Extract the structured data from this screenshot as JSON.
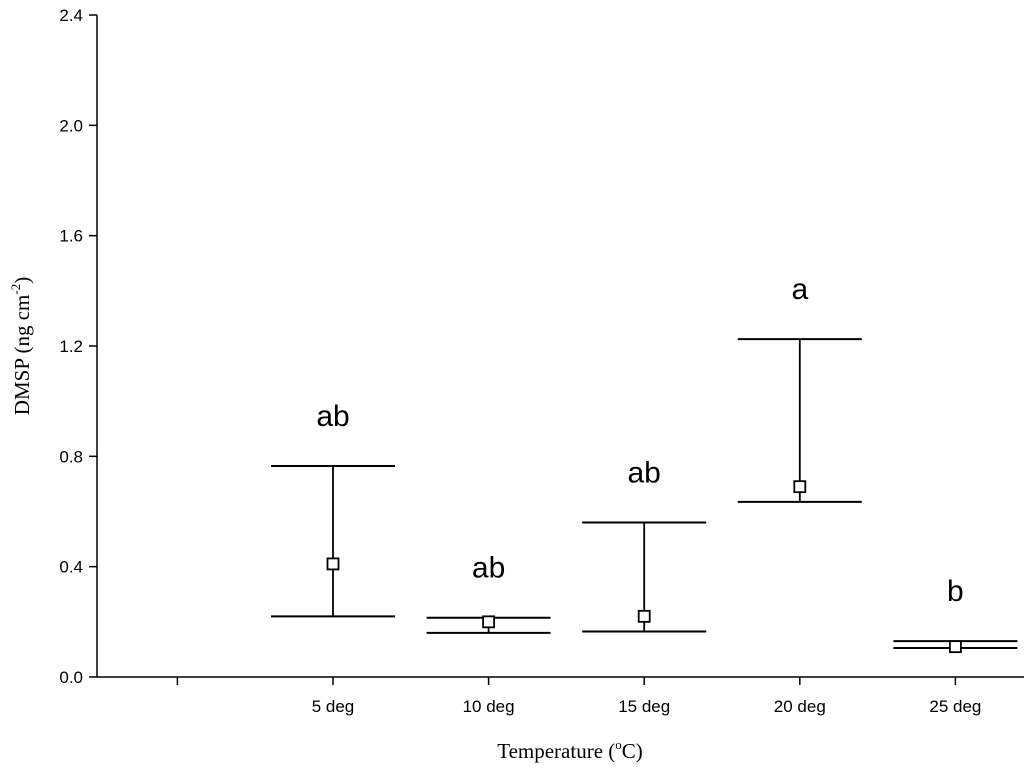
{
  "chart_data": {
    "type": "scatter",
    "title": "",
    "xlabel": {
      "main": "Temperature (",
      "sup": "o",
      "tail": "C)"
    },
    "ylabel": {
      "main": "DMSP (ng cm",
      "sup": "-2",
      "tail": ")"
    },
    "ylim": [
      0.0,
      2.4
    ],
    "yticks": [
      "0.0",
      "0.4",
      "0.8",
      "1.2",
      "1.6",
      "2.0",
      "2.4"
    ],
    "categories": [
      "5 deg",
      "10 deg",
      "15 deg",
      "20 deg",
      "25 deg"
    ],
    "values": [
      0.41,
      0.2,
      0.22,
      0.69,
      0.11
    ],
    "error_low": [
      0.22,
      0.16,
      0.165,
      0.635,
      0.105
    ],
    "error_high": [
      0.765,
      0.215,
      0.56,
      1.225,
      0.13
    ],
    "annotations": [
      "ab",
      "ab",
      "ab",
      "a",
      "b"
    ],
    "grid": false,
    "legend": "none"
  }
}
